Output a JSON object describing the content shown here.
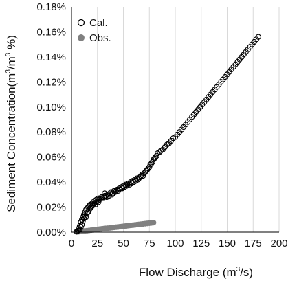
{
  "chart_data": {
    "type": "scatter",
    "xlabel_prefix": "Flow Discharge (m",
    "xlabel_sup": "3",
    "xlabel_suffix": "/s)",
    "ylabel_prefix": "Sediment Concentration(m",
    "ylabel_sup1": "3",
    "ylabel_mid": "/m",
    "ylabel_sup2": "3",
    "ylabel_suffix": " %)",
    "xlim": [
      0,
      200
    ],
    "ylim": [
      0,
      0.18
    ],
    "x_ticks": [
      "0",
      "25",
      "50",
      "75",
      "100",
      "125",
      "150",
      "175",
      "200"
    ],
    "y_ticks": [
      "0.00%",
      "0.02%",
      "0.04%",
      "0.06%",
      "0.08%",
      "0.10%",
      "0.12%",
      "0.14%",
      "0.16%",
      "0.18%"
    ],
    "grid": "vertical",
    "legend_position": "top-left",
    "series": [
      {
        "name": "Cal.",
        "marker": "open-circle",
        "color": "#000000",
        "points": [
          [
            5,
            0.0005
          ],
          [
            6,
            0.001
          ],
          [
            7,
            0.0015
          ],
          [
            7,
            0.003
          ],
          [
            8,
            0.002
          ],
          [
            8,
            0.005
          ],
          [
            9,
            0.004
          ],
          [
            9,
            0.008
          ],
          [
            10,
            0.006
          ],
          [
            10,
            0.01
          ],
          [
            11,
            0.009
          ],
          [
            11,
            0.012
          ],
          [
            12,
            0.011
          ],
          [
            12,
            0.014
          ],
          [
            13,
            0.013
          ],
          [
            13,
            0.016
          ],
          [
            14,
            0.012
          ],
          [
            14,
            0.018
          ],
          [
            15,
            0.015
          ],
          [
            15,
            0.019
          ],
          [
            16,
            0.016
          ],
          [
            16,
            0.02
          ],
          [
            17,
            0.018
          ],
          [
            17,
            0.021
          ],
          [
            18,
            0.019
          ],
          [
            18,
            0.022
          ],
          [
            19,
            0.02
          ],
          [
            20,
            0.021
          ],
          [
            20,
            0.023
          ],
          [
            21,
            0.022
          ],
          [
            22,
            0.023
          ],
          [
            22,
            0.025
          ],
          [
            23,
            0.022
          ],
          [
            24,
            0.024
          ],
          [
            24,
            0.026
          ],
          [
            25,
            0.025
          ],
          [
            26,
            0.024
          ],
          [
            26,
            0.027
          ],
          [
            27,
            0.026
          ],
          [
            28,
            0.027
          ],
          [
            29,
            0.028
          ],
          [
            30,
            0.027
          ],
          [
            31,
            0.028
          ],
          [
            32,
            0.029
          ],
          [
            32,
            0.031
          ],
          [
            33,
            0.029
          ],
          [
            34,
            0.028
          ],
          [
            35,
            0.03
          ],
          [
            36,
            0.029
          ],
          [
            37,
            0.031
          ],
          [
            38,
            0.032
          ],
          [
            39,
            0.03
          ],
          [
            40,
            0.031
          ],
          [
            41,
            0.033
          ],
          [
            42,
            0.032
          ],
          [
            43,
            0.033
          ],
          [
            44,
            0.034
          ],
          [
            45,
            0.033
          ],
          [
            46,
            0.035
          ],
          [
            47,
            0.034
          ],
          [
            48,
            0.036
          ],
          [
            49,
            0.035
          ],
          [
            50,
            0.037
          ],
          [
            51,
            0.036
          ],
          [
            52,
            0.038
          ],
          [
            53,
            0.037
          ],
          [
            54,
            0.038
          ],
          [
            55,
            0.039
          ],
          [
            56,
            0.038
          ],
          [
            57,
            0.04
          ],
          [
            58,
            0.039
          ],
          [
            59,
            0.041
          ],
          [
            60,
            0.04
          ],
          [
            61,
            0.042
          ],
          [
            62,
            0.041
          ],
          [
            63,
            0.043
          ],
          [
            64,
            0.042
          ],
          [
            65,
            0.043
          ],
          [
            66,
            0.044
          ],
          [
            67,
            0.045
          ],
          [
            68,
            0.046
          ],
          [
            69,
            0.045
          ],
          [
            70,
            0.047
          ],
          [
            71,
            0.048
          ],
          [
            72,
            0.049
          ],
          [
            73,
            0.05
          ],
          [
            74,
            0.051
          ],
          [
            75,
            0.052
          ],
          [
            76,
            0.054
          ],
          [
            77,
            0.055
          ],
          [
            78,
            0.056
          ],
          [
            79,
            0.058
          ],
          [
            80,
            0.059
          ],
          [
            81,
            0.06
          ],
          [
            82,
            0.061
          ],
          [
            83,
            0.063
          ],
          [
            85,
            0.064
          ],
          [
            86,
            0.065
          ],
          [
            88,
            0.066
          ],
          [
            90,
            0.068
          ],
          [
            92,
            0.07
          ],
          [
            94,
            0.071
          ],
          [
            96,
            0.073
          ],
          [
            98,
            0.075
          ],
          [
            100,
            0.076
          ],
          [
            102,
            0.078
          ],
          [
            104,
            0.08
          ],
          [
            106,
            0.082
          ],
          [
            108,
            0.084
          ],
          [
            110,
            0.086
          ],
          [
            112,
            0.088
          ],
          [
            114,
            0.09
          ],
          [
            116,
            0.092
          ],
          [
            118,
            0.094
          ],
          [
            120,
            0.096
          ],
          [
            122,
            0.098
          ],
          [
            124,
            0.1
          ],
          [
            126,
            0.102
          ],
          [
            128,
            0.104
          ],
          [
            130,
            0.106
          ],
          [
            132,
            0.108
          ],
          [
            134,
            0.11
          ],
          [
            136,
            0.112
          ],
          [
            138,
            0.114
          ],
          [
            140,
            0.116
          ],
          [
            142,
            0.118
          ],
          [
            144,
            0.12
          ],
          [
            146,
            0.122
          ],
          [
            148,
            0.124
          ],
          [
            150,
            0.126
          ],
          [
            152,
            0.128
          ],
          [
            154,
            0.13
          ],
          [
            156,
            0.132
          ],
          [
            158,
            0.134
          ],
          [
            160,
            0.136
          ],
          [
            162,
            0.138
          ],
          [
            164,
            0.14
          ],
          [
            166,
            0.142
          ],
          [
            168,
            0.144
          ],
          [
            170,
            0.146
          ],
          [
            172,
            0.148
          ],
          [
            174,
            0.15
          ],
          [
            176,
            0.152
          ],
          [
            178,
            0.154
          ],
          [
            180,
            0.156
          ]
        ]
      },
      {
        "name": "Obs.",
        "marker": "filled-circle",
        "color": "#808080",
        "points": [
          [
            5,
            0.0002
          ],
          [
            7,
            0.0004
          ],
          [
            9,
            0.0006
          ],
          [
            11,
            0.0008
          ],
          [
            13,
            0.001
          ],
          [
            15,
            0.0012
          ],
          [
            17,
            0.0014
          ],
          [
            19,
            0.0016
          ],
          [
            21,
            0.0018
          ],
          [
            23,
            0.002
          ],
          [
            25,
            0.0022
          ],
          [
            27,
            0.0024
          ],
          [
            29,
            0.0026
          ],
          [
            31,
            0.0028
          ],
          [
            33,
            0.003
          ],
          [
            35,
            0.0032
          ],
          [
            37,
            0.0034
          ],
          [
            39,
            0.0036
          ],
          [
            41,
            0.0038
          ],
          [
            43,
            0.004
          ],
          [
            45,
            0.0042
          ],
          [
            47,
            0.0044
          ],
          [
            49,
            0.0046
          ],
          [
            51,
            0.0048
          ],
          [
            53,
            0.005
          ],
          [
            55,
            0.0052
          ],
          [
            57,
            0.0054
          ],
          [
            59,
            0.0056
          ],
          [
            61,
            0.0058
          ],
          [
            63,
            0.006
          ],
          [
            65,
            0.0062
          ],
          [
            67,
            0.0064
          ],
          [
            69,
            0.0066
          ],
          [
            71,
            0.0068
          ],
          [
            73,
            0.007
          ],
          [
            75,
            0.0072
          ],
          [
            77,
            0.0074
          ],
          [
            79,
            0.0076
          ]
        ]
      }
    ]
  }
}
